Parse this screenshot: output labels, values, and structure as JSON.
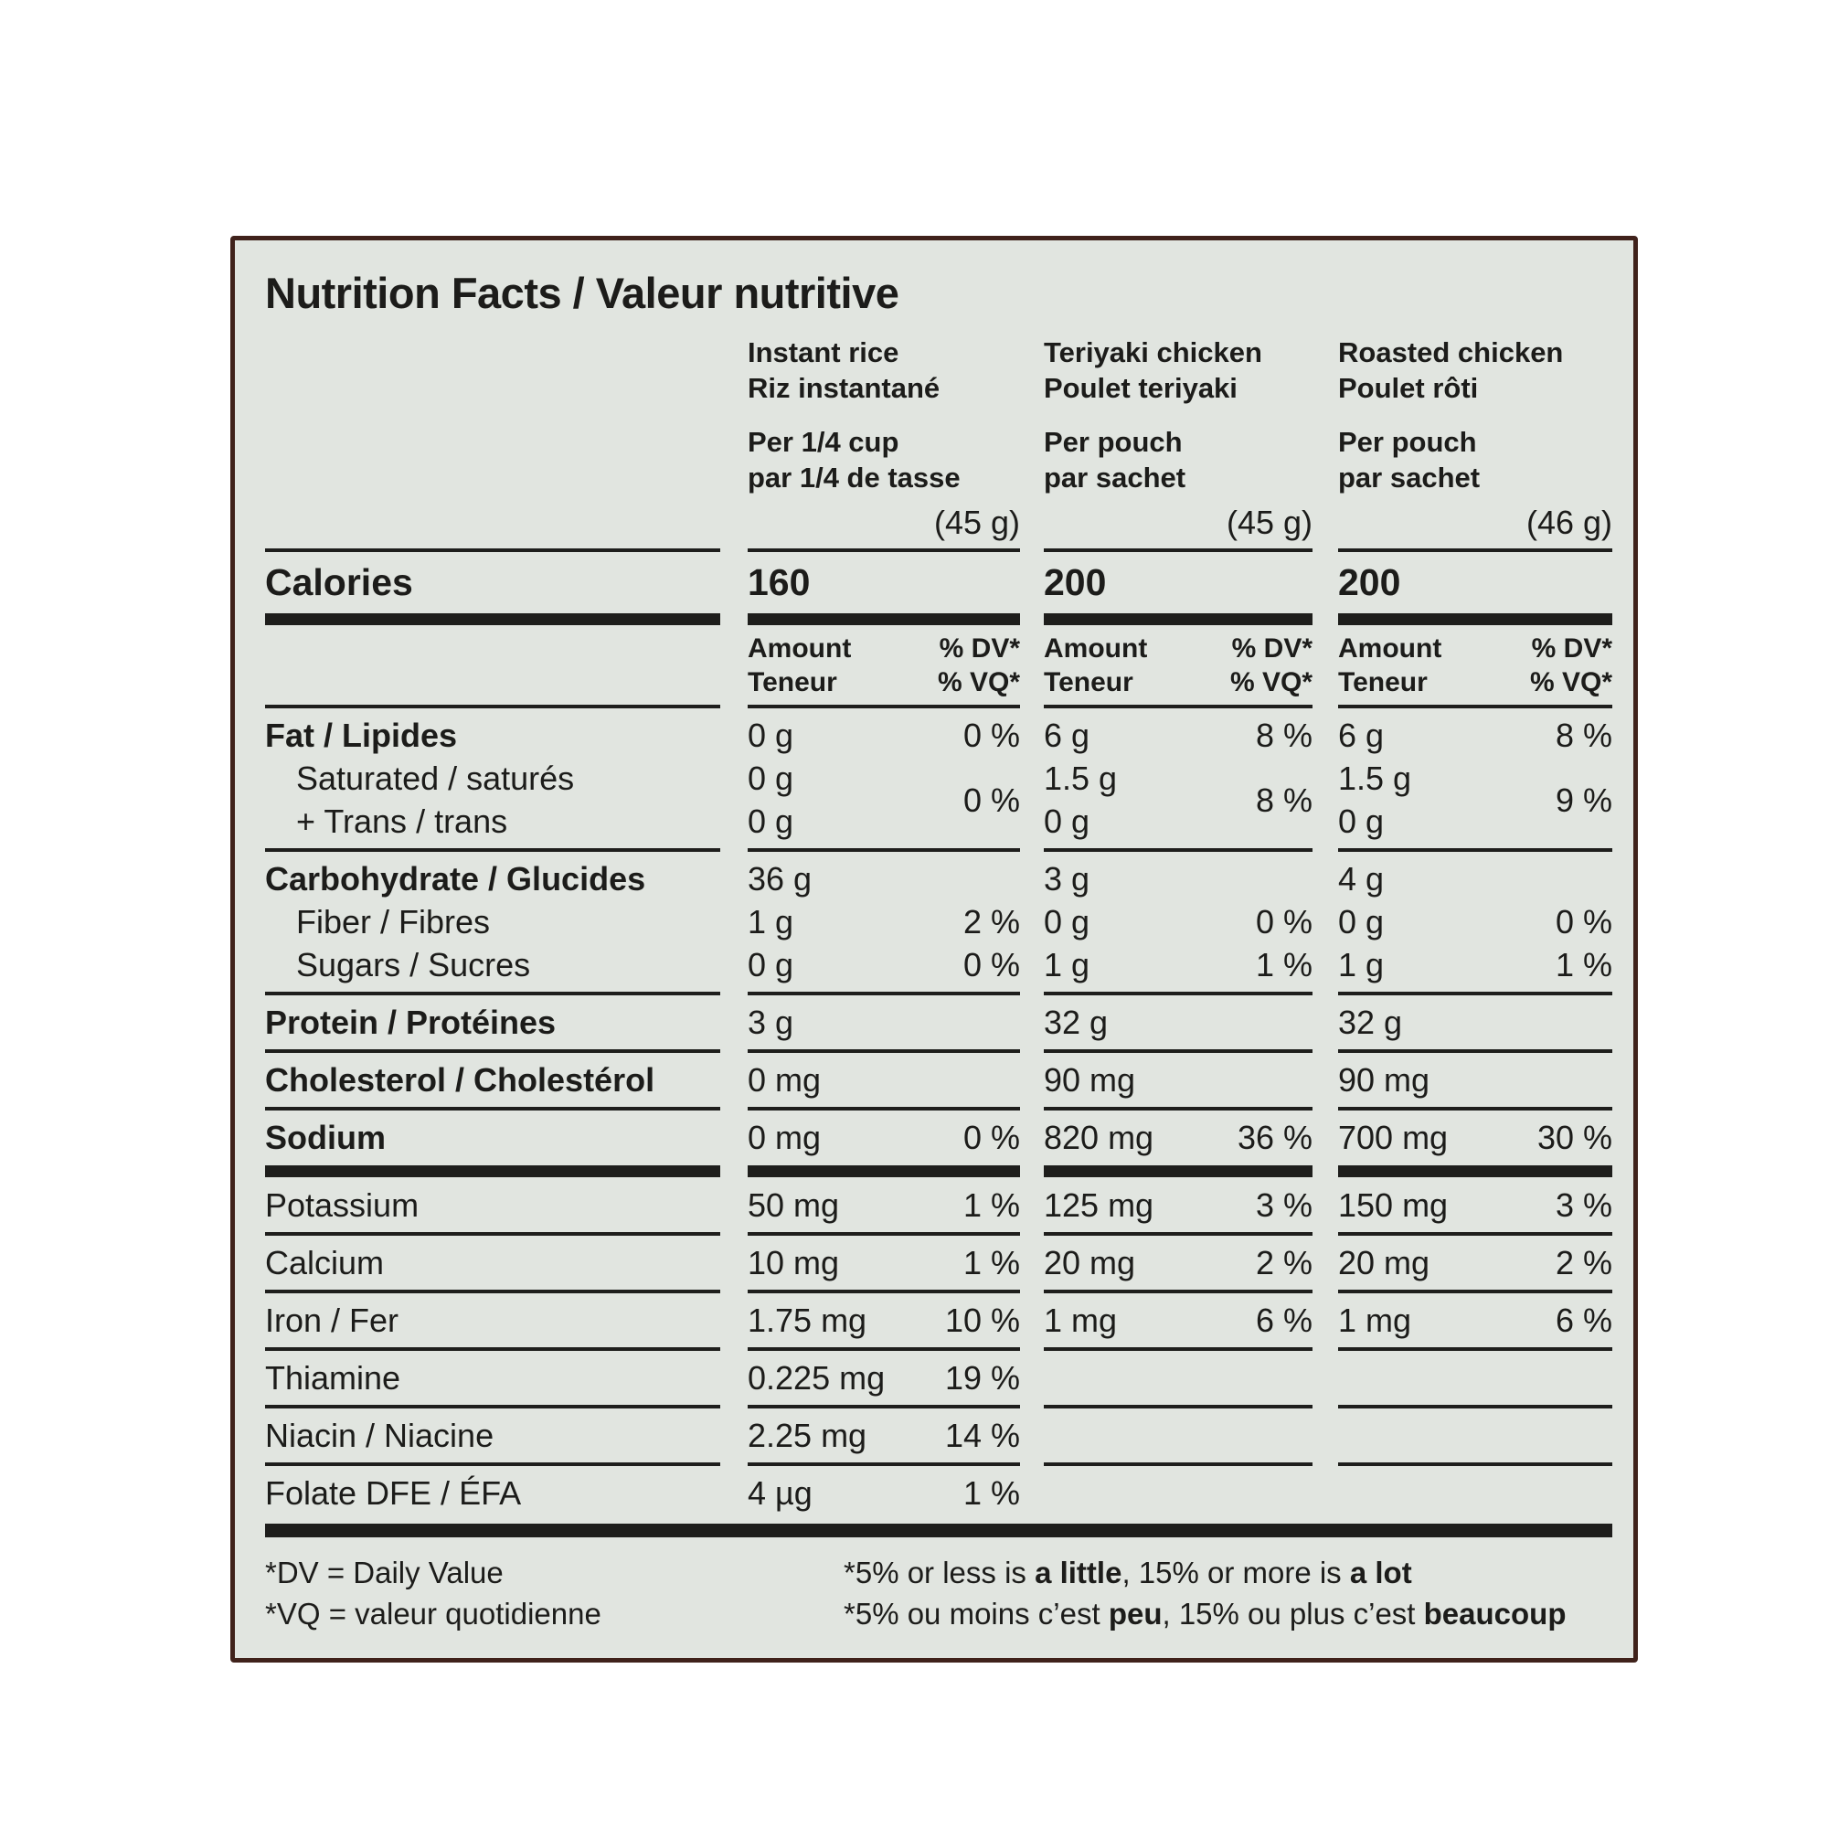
{
  "title": "Nutrition Facts / Valeur nutritive",
  "colors": {
    "card_bg": "#e1e5e0",
    "border": "#40221b",
    "ink": "#1c1c1a"
  },
  "columns": [
    {
      "name_en": "Instant rice",
      "name_fr": "Riz instantané",
      "serving_en": "Per 1/4 cup",
      "serving_fr": "par 1/4 de tasse",
      "weight": "(45 g)",
      "calories": "160"
    },
    {
      "name_en": "Teriyaki chicken",
      "name_fr": "Poulet teriyaki",
      "serving_en": "Per pouch",
      "serving_fr": "par sachet",
      "weight": "(45 g)",
      "calories": "200"
    },
    {
      "name_en": "Roasted chicken",
      "name_fr": "Poulet rôti",
      "serving_en": "Per pouch",
      "serving_fr": "par sachet",
      "weight": "(46 g)",
      "calories": "200"
    }
  ],
  "calories_label": "Calories",
  "col_headers": {
    "amount_en": "Amount",
    "amount_fr": "Teneur",
    "dv_en": "% DV*",
    "dv_fr": "% VQ*"
  },
  "body": [
    {
      "kind": "sep",
      "style": "thin"
    },
    {
      "kind": "calories"
    },
    {
      "kind": "sep",
      "style": "thick"
    },
    {
      "kind": "colheads"
    },
    {
      "kind": "sep",
      "style": "thin"
    },
    {
      "kind": "row",
      "slug": "fat",
      "label": "Fat / Lipides",
      "bold": true,
      "cells": [
        [
          "0 g",
          "0 %"
        ],
        [
          "6 g",
          "8 %"
        ],
        [
          "6 g",
          "8 %"
        ]
      ]
    },
    {
      "kind": "double",
      "slug": "saturated-trans",
      "labels": [
        "Saturated / saturés",
        "+ Trans / trans"
      ],
      "cells": [
        {
          "a1": "0 g",
          "a2": "0 g",
          "dv": "0 %"
        },
        {
          "a1": "1.5 g",
          "a2": "0 g",
          "dv": "8 %"
        },
        {
          "a1": "1.5 g",
          "a2": "0 g",
          "dv": "9 %"
        }
      ]
    },
    {
      "kind": "sep",
      "style": "thin"
    },
    {
      "kind": "row",
      "slug": "carbohydrate",
      "label": "Carbohydrate / Glucides",
      "bold": true,
      "cells": [
        [
          "36 g",
          ""
        ],
        [
          "3 g",
          ""
        ],
        [
          "4 g",
          ""
        ]
      ]
    },
    {
      "kind": "row",
      "slug": "fiber",
      "label": "Fiber / Fibres",
      "indent": true,
      "cells": [
        [
          "1 g",
          "2 %"
        ],
        [
          "0 g",
          "0 %"
        ],
        [
          "0 g",
          "0 %"
        ]
      ]
    },
    {
      "kind": "row",
      "slug": "sugars",
      "label": "Sugars / Sucres",
      "indent": true,
      "cells": [
        [
          "0 g",
          "0 %"
        ],
        [
          "1 g",
          "1 %"
        ],
        [
          "1 g",
          "1 %"
        ]
      ]
    },
    {
      "kind": "sep",
      "style": "thin"
    },
    {
      "kind": "row",
      "slug": "protein",
      "label": "Protein / Protéines",
      "bold": true,
      "cells": [
        [
          "3 g",
          ""
        ],
        [
          "32 g",
          ""
        ],
        [
          "32 g",
          ""
        ]
      ]
    },
    {
      "kind": "sep",
      "style": "thin"
    },
    {
      "kind": "row",
      "slug": "cholesterol",
      "label": "Cholesterol / Cholestérol",
      "bold": true,
      "cells": [
        [
          "0 mg",
          ""
        ],
        [
          "90 mg",
          ""
        ],
        [
          "90 mg",
          ""
        ]
      ]
    },
    {
      "kind": "sep",
      "style": "thin"
    },
    {
      "kind": "row",
      "slug": "sodium",
      "label": "Sodium",
      "bold": true,
      "cells": [
        [
          "0 mg",
          "0 %"
        ],
        [
          "820 mg",
          "36 %"
        ],
        [
          "700 mg",
          "30 %"
        ]
      ]
    },
    {
      "kind": "sep",
      "style": "thick"
    },
    {
      "kind": "row",
      "slug": "potassium",
      "label": "Potassium",
      "cells": [
        [
          "50 mg",
          "1 %"
        ],
        [
          "125 mg",
          "3 %"
        ],
        [
          "150 mg",
          "3 %"
        ]
      ]
    },
    {
      "kind": "sep",
      "style": "thin"
    },
    {
      "kind": "row",
      "slug": "calcium",
      "label": "Calcium",
      "cells": [
        [
          "10 mg",
          "1 %"
        ],
        [
          "20 mg",
          "2 %"
        ],
        [
          "20 mg",
          "2 %"
        ]
      ]
    },
    {
      "kind": "sep",
      "style": "thin"
    },
    {
      "kind": "row",
      "slug": "iron",
      "label": "Iron / Fer",
      "cells": [
        [
          "1.75 mg",
          "10 %"
        ],
        [
          "1 mg",
          "6 %"
        ],
        [
          "1 mg",
          "6 %"
        ]
      ]
    },
    {
      "kind": "sep",
      "style": "thin"
    },
    {
      "kind": "row",
      "slug": "thiamine",
      "label": "Thiamine",
      "cells": [
        [
          "0.225 mg",
          "19 %"
        ],
        [
          "",
          ""
        ],
        [
          "",
          ""
        ]
      ]
    },
    {
      "kind": "sep",
      "style": "thin"
    },
    {
      "kind": "row",
      "slug": "niacin",
      "label": "Niacin / Niacine",
      "cells": [
        [
          "2.25 mg",
          "14 %"
        ],
        [
          "",
          ""
        ],
        [
          "",
          ""
        ]
      ]
    },
    {
      "kind": "sep",
      "style": "thin"
    },
    {
      "kind": "row",
      "slug": "folate",
      "label": "Folate DFE / ÉFA",
      "cells": [
        [
          "4 µg",
          "1 %"
        ],
        [
          "",
          ""
        ],
        [
          "",
          ""
        ]
      ]
    },
    {
      "kind": "bottombar"
    }
  ],
  "footnotes": {
    "left": [
      "*DV = Daily Value",
      "*VQ = valeur quotidienne"
    ],
    "right": [
      [
        {
          "t": "*5% or less is "
        },
        {
          "t": "a little",
          "b": true
        },
        {
          "t": ", 15% or more is "
        },
        {
          "t": "a lot",
          "b": true
        }
      ],
      [
        {
          "t": "*5% ou moins c’est "
        },
        {
          "t": "peu",
          "b": true
        },
        {
          "t": ", 15% ou plus c’est "
        },
        {
          "t": "beaucoup",
          "b": true
        }
      ]
    ]
  }
}
